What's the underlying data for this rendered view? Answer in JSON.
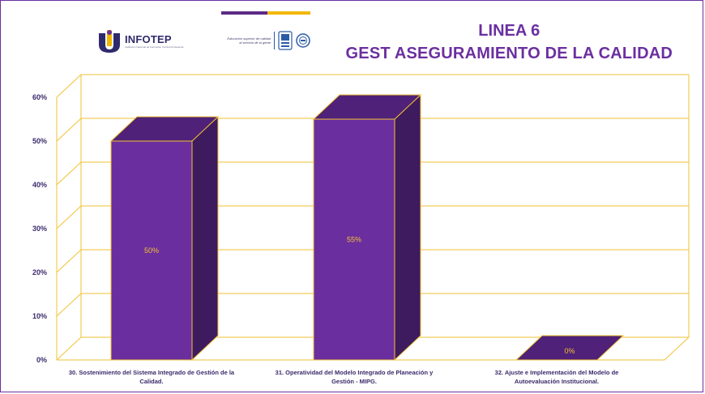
{
  "header": {
    "org_name": "INFOTEP",
    "org_subtitle": "Institución Nacional de Formación Técnica Profesional",
    "ministry_text": [
      "Educación superior de calidad",
      "al servicio de la gente"
    ],
    "title_line1": "LINEA 6",
    "title_line2": "GEST ASEGURAMIENTO DE LA CALIDAD"
  },
  "colors": {
    "bar_front": "#6a2e9e",
    "bar_top": "#4f2178",
    "bar_side": "#3e1a5f",
    "bar_edge": "#f2c233",
    "grid": "#f2c233",
    "frame": "#6b2fa0",
    "title": "#6b2fa0",
    "data_label": "#f2c233"
  },
  "chart_data": {
    "type": "bar",
    "title": "",
    "xlabel": "",
    "ylabel": "",
    "ylim": [
      0,
      0.6
    ],
    "yticks": [
      {
        "value": 0.0,
        "label": "0%"
      },
      {
        "value": 0.1,
        "label": "10%"
      },
      {
        "value": 0.2,
        "label": "20%"
      },
      {
        "value": 0.3,
        "label": "30%"
      },
      {
        "value": 0.4,
        "label": "40%"
      },
      {
        "value": 0.5,
        "label": "50%"
      },
      {
        "value": 0.6,
        "label": "60%"
      }
    ],
    "grid": true,
    "style": "3d-column",
    "categories": [
      [
        "30. Sostenimiento del Sistema Integrado de Gestión de la",
        "Calidad."
      ],
      [
        "31. Operatividad del Modelo Integrado de Planeación y",
        "Gestión - MIPG."
      ],
      [
        "32. Ajuste e Implementación del Modelo de",
        "Autoevaluación Institucional."
      ]
    ],
    "values": [
      0.5,
      0.55,
      0.0
    ],
    "data_labels": [
      "50%",
      "55%",
      "0%"
    ]
  }
}
